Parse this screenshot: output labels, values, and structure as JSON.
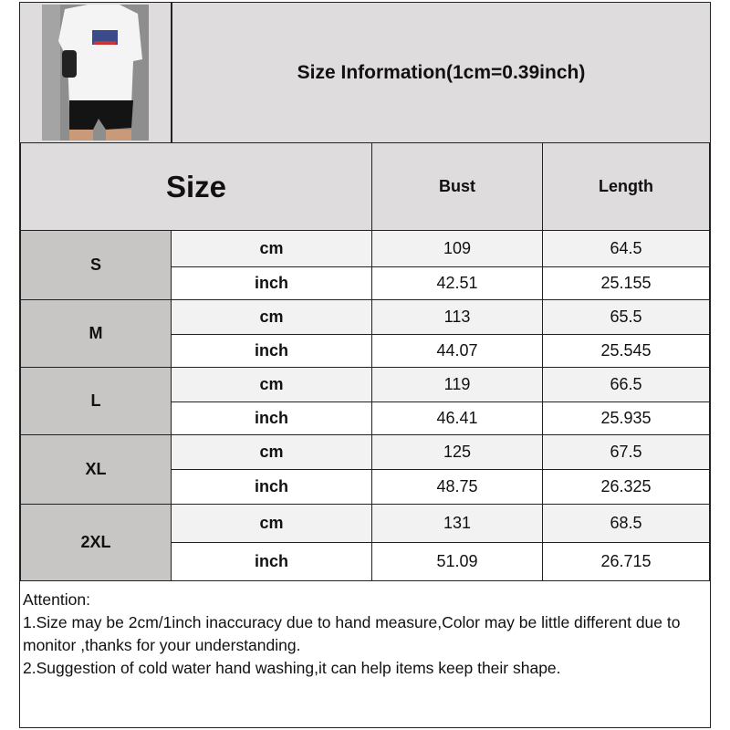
{
  "title": "Size Information(1cm=0.39inch)",
  "headers": {
    "size": "Size",
    "bust": "Bust",
    "length": "Length"
  },
  "rows": [
    {
      "size": "S",
      "cm": {
        "unit": "cm",
        "bust": "109",
        "length": "64.5"
      },
      "inch": {
        "unit": "inch",
        "bust": "42.51",
        "length": "25.155"
      }
    },
    {
      "size": "M",
      "cm": {
        "unit": "cm",
        "bust": "113",
        "length": "65.5"
      },
      "inch": {
        "unit": "inch",
        "bust": "44.07",
        "length": "25.545"
      }
    },
    {
      "size": "L",
      "cm": {
        "unit": "cm",
        "bust": "119",
        "length": "66.5"
      },
      "inch": {
        "unit": "inch",
        "bust": "46.41",
        "length": "25.935"
      }
    },
    {
      "size": "XL",
      "cm": {
        "unit": "cm",
        "bust": "125",
        "length": "67.5"
      },
      "inch": {
        "unit": "inch",
        "bust": "48.75",
        "length": "26.325"
      }
    },
    {
      "size": "2XL",
      "cm": {
        "unit": "cm",
        "bust": "131",
        "length": "68.5"
      },
      "inch": {
        "unit": "inch",
        "bust": "51.09",
        "length": "26.715"
      }
    }
  ],
  "attention": {
    "heading": "Attention:",
    "line1": "1.Size may be 2cm/1inch inaccuracy due to hand measure,Color may be little different due to monitor ,thanks for your understanding.",
    "line2": "2.Suggestion of cold water hand washing,it can help items keep their shape."
  }
}
